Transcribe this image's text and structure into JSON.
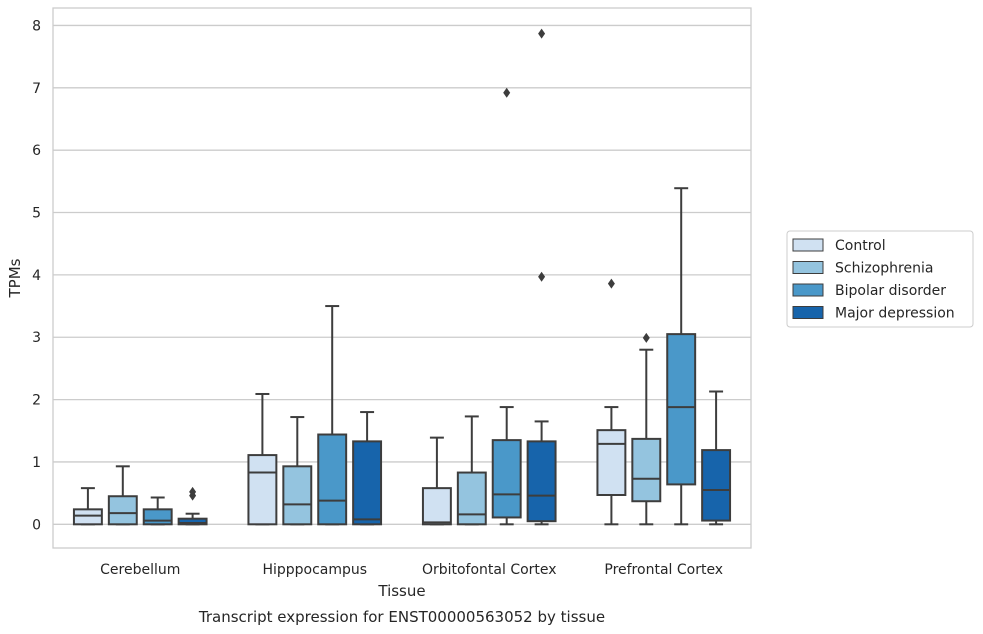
{
  "caption": "Transcript expression for ENST00000563052 by tissue",
  "chart_data": {
    "type": "box",
    "xlabel": "Tissue",
    "ylabel": "TPMs",
    "ylim": [
      -0.38,
      8.28
    ],
    "yticks": [
      0,
      1,
      2,
      3,
      4,
      5,
      6,
      7,
      8
    ],
    "grid": true,
    "legend_placement": "center-right",
    "categories": [
      "Cerebellum",
      "Hipppocampus",
      "Orbitofontal Cortex",
      "Prefrontal Cortex"
    ],
    "series": [
      {
        "name": "Control",
        "color": "#d0e1f2",
        "boxes": [
          {
            "whislo": 0,
            "q1": 0,
            "med": 0.14,
            "q3": 0.24,
            "whishi": 0.58,
            "fliers": []
          },
          {
            "whislo": 0,
            "q1": 0,
            "med": 0.83,
            "q3": 1.11,
            "whishi": 2.09,
            "fliers": []
          },
          {
            "whislo": 0,
            "q1": 0,
            "med": 0.03,
            "q3": 0.58,
            "whishi": 1.39,
            "fliers": []
          },
          {
            "whislo": 0,
            "q1": 0.47,
            "med": 1.29,
            "q3": 1.51,
            "whishi": 1.88,
            "fliers": [
              3.86
            ]
          }
        ]
      },
      {
        "name": "Schizophrenia",
        "color": "#94c4df",
        "boxes": [
          {
            "whislo": 0,
            "q1": 0,
            "med": 0.18,
            "q3": 0.45,
            "whishi": 0.93,
            "fliers": []
          },
          {
            "whislo": 0,
            "q1": 0,
            "med": 0.32,
            "q3": 0.93,
            "whishi": 1.72,
            "fliers": []
          },
          {
            "whislo": 0,
            "q1": 0,
            "med": 0.16,
            "q3": 0.83,
            "whishi": 1.73,
            "fliers": []
          },
          {
            "whislo": 0,
            "q1": 0.37,
            "med": 0.73,
            "q3": 1.37,
            "whishi": 2.8,
            "fliers": [
              2.99
            ]
          }
        ]
      },
      {
        "name": "Bipolar disorder",
        "color": "#4a98c9",
        "boxes": [
          {
            "whislo": 0,
            "q1": 0,
            "med": 0.06,
            "q3": 0.24,
            "whishi": 0.43,
            "fliers": []
          },
          {
            "whislo": 0,
            "q1": 0,
            "med": 0.38,
            "q3": 1.44,
            "whishi": 3.5,
            "fliers": []
          },
          {
            "whislo": 0,
            "q1": 0.11,
            "med": 0.48,
            "q3": 1.35,
            "whishi": 1.88,
            "fliers": [
              6.92
            ]
          },
          {
            "whislo": 0,
            "q1": 0.64,
            "med": 1.88,
            "q3": 3.05,
            "whishi": 5.39,
            "fliers": []
          }
        ]
      },
      {
        "name": "Major depression",
        "color": "#1764ab",
        "boxes": [
          {
            "whislo": 0,
            "q1": 0,
            "med": 0.02,
            "q3": 0.09,
            "whishi": 0.17,
            "fliers": [
              0.46,
              0.52
            ]
          },
          {
            "whislo": 0,
            "q1": 0,
            "med": 0.08,
            "q3": 1.33,
            "whishi": 1.8,
            "fliers": []
          },
          {
            "whislo": 0,
            "q1": 0.05,
            "med": 0.46,
            "q3": 1.33,
            "whishi": 1.65,
            "fliers": [
              3.97,
              7.87
            ]
          },
          {
            "whislo": 0,
            "q1": 0.06,
            "med": 0.55,
            "q3": 1.19,
            "whishi": 2.13,
            "fliers": []
          }
        ]
      }
    ]
  }
}
